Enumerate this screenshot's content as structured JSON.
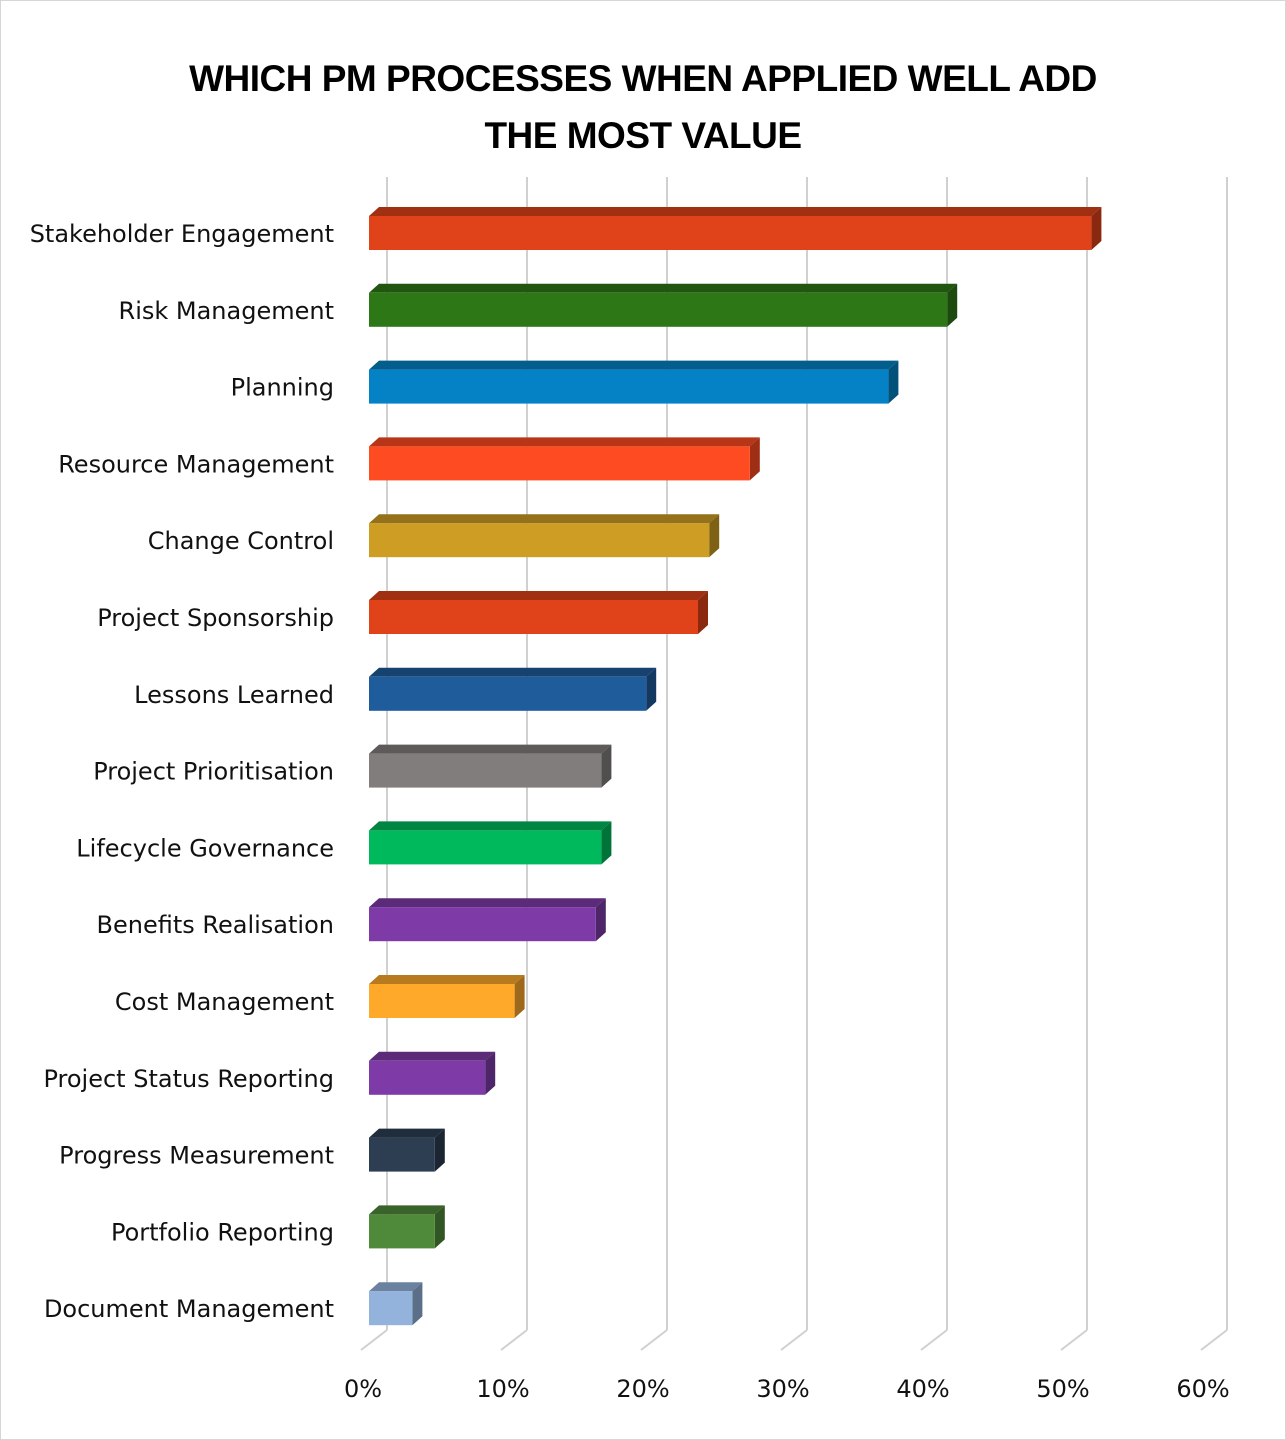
{
  "chart_data": {
    "type": "bar",
    "orientation": "horizontal",
    "style": "3d",
    "title_lines": [
      "WHICH PM PROCESSES WHEN APPLIED WELL ADD",
      "THE MOST VALUE"
    ],
    "categories": [
      "Stakeholder Engagement",
      "Risk Management",
      "Planning",
      "Resource Management",
      "Change Control",
      "Project Sponsorship",
      "Lessons Learned",
      "Project Prioritisation",
      "Lifecycle Governance",
      "Benefits Realisation",
      "Cost Management",
      "Project Status Reporting",
      "Progress Measurement",
      "Portfolio Reporting",
      "Document Management"
    ],
    "values": [
      51.6,
      41.3,
      37.1,
      27.2,
      24.3,
      23.5,
      19.8,
      16.6,
      16.6,
      16.2,
      10.4,
      8.3,
      4.7,
      4.7,
      3.1
    ],
    "colors": [
      "#E0421A",
      "#2E7716",
      "#0482C5",
      "#FF4B22",
      "#CD9D24",
      "#E0421A",
      "#1E5C9C",
      "#827D7D",
      "#00B95C",
      "#7E3BA8",
      "#FFA92A",
      "#7E3BA8",
      "#2D3E53",
      "#4F8A3A",
      "#93B3DD"
    ],
    "xlim": [
      0,
      60
    ],
    "xticks": [
      0,
      10,
      20,
      30,
      40,
      50,
      60
    ],
    "tick_labels": [
      "0%",
      "10%",
      "20%",
      "30%",
      "40%",
      "50%",
      "60%"
    ],
    "xlabel": "",
    "ylabel": "",
    "grid": true,
    "legend": "none"
  }
}
